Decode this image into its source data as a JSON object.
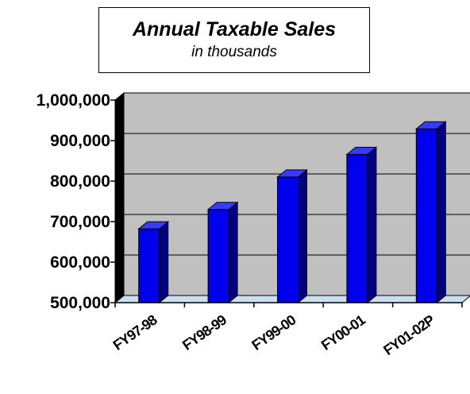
{
  "chart_data": {
    "type": "bar",
    "title": "Annual Taxable Sales",
    "subtitle": "in thousands",
    "categories": [
      "FY97-98",
      "FY98-99",
      "FY99-00",
      "FY00-01",
      "FY01-02P"
    ],
    "values": [
      682000,
      730000,
      810000,
      866000,
      929000
    ],
    "ylim": [
      500000,
      1000000
    ],
    "yticks": [
      {
        "value": 500000,
        "label": "500,000"
      },
      {
        "value": 600000,
        "label": "600,000"
      },
      {
        "value": 700000,
        "label": "700,000"
      },
      {
        "value": 800000,
        "label": "800,000"
      },
      {
        "value": 900000,
        "label": "900,000"
      },
      {
        "value": 1000000,
        "label": "1,000,000"
      }
    ],
    "grid": true,
    "legend": "none",
    "colors": {
      "bar_front": "#0000ee",
      "bar_side": "#000080",
      "bar_top": "#3a3aff",
      "plot_back": "#c0c0c0",
      "floor": "#c8e0f0",
      "wall": "#000000"
    }
  }
}
